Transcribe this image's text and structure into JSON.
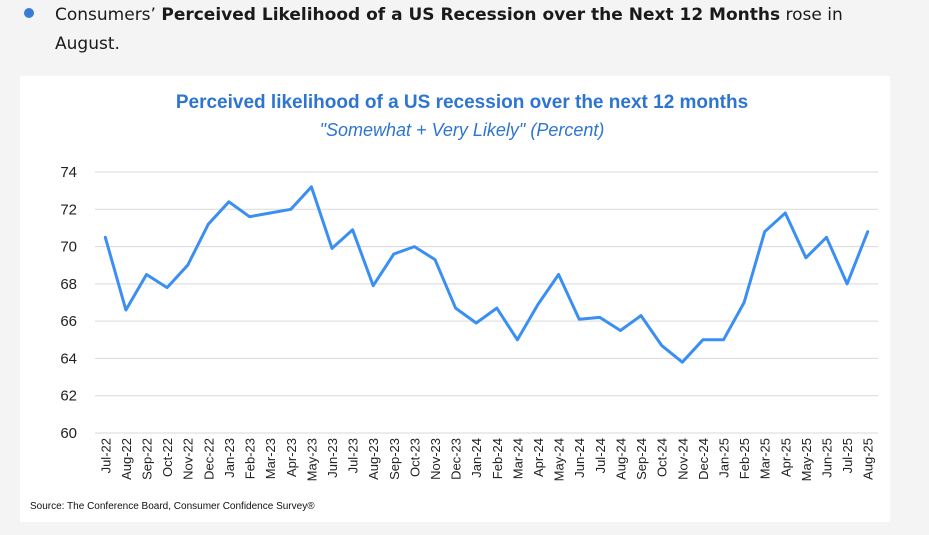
{
  "bullet": {
    "prefix": "Consumers’ ",
    "bold": "Perceived Likelihood of a US Recession over the Next 12 Months",
    "suffix": " rose in August."
  },
  "colors": {
    "bullet": "#3b7bd8",
    "title": "#2e75d2",
    "line": "#3b8ff2",
    "grid": "#d9d9d9"
  },
  "chart_data": {
    "type": "line",
    "title": "Perceived likelihood of a US recession over the next 12 months",
    "subtitle": "\"Somewhat + Very Likely\" (Percent)",
    "xlabel": "",
    "ylabel": "",
    "ylim": [
      60,
      74
    ],
    "yticks": [
      60,
      62,
      64,
      66,
      68,
      70,
      72,
      74
    ],
    "grid": true,
    "categories": [
      "Jul-22",
      "Aug-22",
      "Sep-22",
      "Oct-22",
      "Nov-22",
      "Dec-22",
      "Jan-23",
      "Feb-23",
      "Mar-23",
      "Apr-23",
      "May-23",
      "Jun-23",
      "Jul-23",
      "Aug-23",
      "Sep-23",
      "Oct-23",
      "Nov-23",
      "Dec-23",
      "Jan-24",
      "Feb-24",
      "Mar-24",
      "Apr-24",
      "May-24",
      "Jun-24",
      "Jul-24",
      "Aug-24",
      "Sep-24",
      "Oct-24",
      "Nov-24",
      "Dec-24",
      "Jan-25",
      "Feb-25",
      "Mar-25",
      "Apr-25",
      "May-25",
      "Jun-25",
      "Jul-25",
      "Aug-25"
    ],
    "series": [
      {
        "values": [
          70.5,
          66.6,
          68.5,
          67.8,
          69.0,
          71.2,
          72.4,
          71.6,
          71.8,
          72.0,
          73.2,
          69.9,
          70.9,
          67.9,
          69.6,
          70.0,
          69.3,
          66.7,
          65.9,
          66.7,
          65.0,
          66.9,
          68.5,
          66.1,
          66.2,
          65.5,
          66.3,
          64.7,
          63.8,
          65.0,
          65.0,
          67.0,
          70.8,
          71.8,
          69.4,
          70.5,
          68.0,
          70.8
        ]
      }
    ],
    "source": "Source: The Conference Board, Consumer Confidence Survey®"
  }
}
